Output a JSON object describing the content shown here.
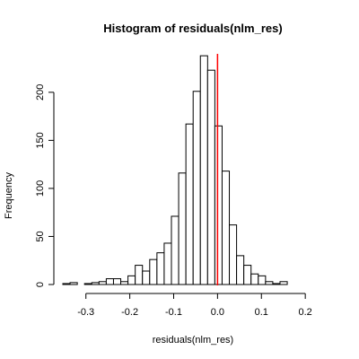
{
  "chart_data": {
    "type": "bar",
    "title": "Histogram of residuals(nlm_res)",
    "xlabel": "residuals(nlm_res)",
    "ylabel": "Frequency",
    "bin_width": 0.0165,
    "bin_start": -0.3526,
    "bins": [
      {
        "x0": -0.3526,
        "count": 1
      },
      {
        "x0": -0.3361,
        "count": 2
      },
      {
        "x0": -0.3196,
        "count": 0
      },
      {
        "x0": -0.3031,
        "count": 1
      },
      {
        "x0": -0.2866,
        "count": 2
      },
      {
        "x0": -0.2701,
        "count": 3
      },
      {
        "x0": -0.2536,
        "count": 6
      },
      {
        "x0": -0.2371,
        "count": 6
      },
      {
        "x0": -0.2206,
        "count": 3
      },
      {
        "x0": -0.2041,
        "count": 9
      },
      {
        "x0": -0.1876,
        "count": 20
      },
      {
        "x0": -0.1711,
        "count": 14
      },
      {
        "x0": -0.1546,
        "count": 26
      },
      {
        "x0": -0.1381,
        "count": 33
      },
      {
        "x0": -0.1216,
        "count": 43
      },
      {
        "x0": -0.1051,
        "count": 71
      },
      {
        "x0": -0.0886,
        "count": 116
      },
      {
        "x0": -0.0721,
        "count": 167
      },
      {
        "x0": -0.0556,
        "count": 201
      },
      {
        "x0": -0.0391,
        "count": 238
      },
      {
        "x0": -0.0226,
        "count": 223
      },
      {
        "x0": -0.0061,
        "count": 165
      },
      {
        "x0": 0.0104,
        "count": 118
      },
      {
        "x0": 0.0269,
        "count": 62
      },
      {
        "x0": 0.0434,
        "count": 30
      },
      {
        "x0": 0.0599,
        "count": 20
      },
      {
        "x0": 0.0764,
        "count": 11
      },
      {
        "x0": 0.0929,
        "count": 9
      },
      {
        "x0": 0.1094,
        "count": 3
      },
      {
        "x0": 0.1259,
        "count": 1
      },
      {
        "x0": 0.1424,
        "count": 3
      }
    ],
    "x_ticks": [
      -0.3,
      -0.2,
      -0.1,
      0.0,
      0.1,
      0.2
    ],
    "x_tick_labels": [
      "-0.3",
      "-0.2",
      "-0.1",
      "0.0",
      "0.1",
      "0.2"
    ],
    "y_ticks": [
      0,
      50,
      100,
      150,
      200
    ],
    "y_tick_labels": [
      "0",
      "50",
      "100",
      "150",
      "200"
    ],
    "xlim": [
      -0.3526,
      0.2365
    ],
    "ylim": [
      0,
      240
    ],
    "vline": {
      "x": 0.0,
      "color": "#ff0000"
    },
    "grid": false,
    "bar_fill": "#ffffff",
    "bar_stroke": "#000000"
  }
}
